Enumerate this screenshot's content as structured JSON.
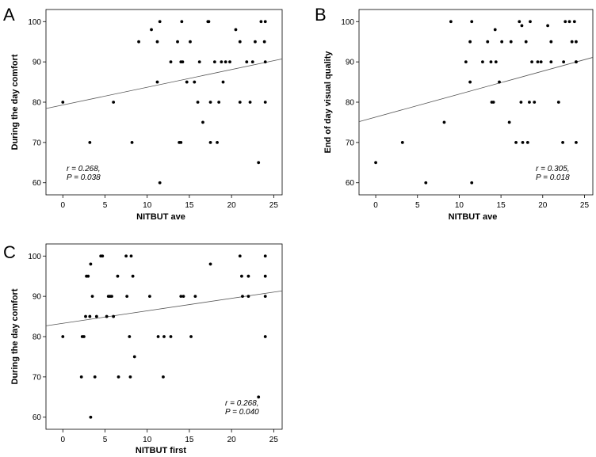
{
  "chart_data": [
    {
      "panel_label": "A",
      "type": "scatter",
      "xlabel": "NITBUT ave",
      "ylabel": "During the day comfort",
      "xlim": [
        -2,
        26
      ],
      "ylim": [
        57,
        103
      ],
      "xticks": [
        0,
        5,
        10,
        15,
        20,
        25
      ],
      "yticks": [
        60,
        70,
        80,
        90,
        100
      ],
      "stats_r": "r = 0.268,",
      "stats_p": "P = 0.038",
      "stats_position": "bottom-left",
      "fit_line": {
        "intercept": 79.3,
        "slope": 0.44
      },
      "points": [
        [
          0,
          80
        ],
        [
          3.2,
          70
        ],
        [
          6,
          80
        ],
        [
          8.2,
          70
        ],
        [
          9,
          95
        ],
        [
          10.5,
          98
        ],
        [
          11.2,
          95
        ],
        [
          11.2,
          85
        ],
        [
          11.5,
          100
        ],
        [
          11.5,
          60
        ],
        [
          12.8,
          90
        ],
        [
          13.6,
          95
        ],
        [
          13.8,
          70
        ],
        [
          14,
          70
        ],
        [
          14,
          90
        ],
        [
          14.1,
          100
        ],
        [
          14.2,
          90
        ],
        [
          14.7,
          85
        ],
        [
          15.1,
          95
        ],
        [
          15.6,
          85
        ],
        [
          16,
          80
        ],
        [
          16.2,
          90
        ],
        [
          16.6,
          75
        ],
        [
          17.2,
          100
        ],
        [
          17.3,
          100
        ],
        [
          17.5,
          80
        ],
        [
          17.5,
          70
        ],
        [
          18,
          90
        ],
        [
          18.3,
          70
        ],
        [
          18.5,
          80
        ],
        [
          18.8,
          90
        ],
        [
          19,
          85
        ],
        [
          19.3,
          90
        ],
        [
          19.8,
          90
        ],
        [
          20.5,
          98
        ],
        [
          21,
          80
        ],
        [
          21,
          95
        ],
        [
          21.8,
          90
        ],
        [
          22.2,
          80
        ],
        [
          22.5,
          90
        ],
        [
          22.8,
          95
        ],
        [
          23.2,
          65
        ],
        [
          23.5,
          100
        ],
        [
          23.9,
          95
        ],
        [
          24,
          90
        ],
        [
          24,
          100
        ],
        [
          24,
          80
        ]
      ]
    },
    {
      "panel_label": "B",
      "type": "scatter",
      "xlabel": "NITBUT ave",
      "ylabel": "End of day visual quality",
      "xlim": [
        -2,
        26
      ],
      "ylim": [
        57,
        103
      ],
      "xticks": [
        0,
        5,
        10,
        15,
        20,
        25
      ],
      "yticks": [
        60,
        70,
        80,
        90,
        100
      ],
      "stats_r": "r = 0.305,",
      "stats_p": "P = 0.018",
      "stats_position": "bottom-right",
      "fit_line": {
        "intercept": 76.3,
        "slope": 0.57
      },
      "points": [
        [
          0,
          65
        ],
        [
          3.2,
          70
        ],
        [
          6,
          60
        ],
        [
          8.2,
          75
        ],
        [
          9,
          100
        ],
        [
          10.8,
          90
        ],
        [
          11.3,
          95
        ],
        [
          11.3,
          85
        ],
        [
          11.5,
          100
        ],
        [
          11.5,
          60
        ],
        [
          12.8,
          90
        ],
        [
          13.4,
          95
        ],
        [
          13.8,
          90
        ],
        [
          13.9,
          80
        ],
        [
          14.1,
          80
        ],
        [
          14.3,
          98
        ],
        [
          14.4,
          90
        ],
        [
          14.8,
          85
        ],
        [
          15.1,
          95
        ],
        [
          16,
          75
        ],
        [
          16.2,
          95
        ],
        [
          16.8,
          70
        ],
        [
          17.2,
          100
        ],
        [
          17.4,
          80
        ],
        [
          17.5,
          99
        ],
        [
          17.6,
          70
        ],
        [
          18,
          95
        ],
        [
          18.2,
          70
        ],
        [
          18.4,
          80
        ],
        [
          18.5,
          100
        ],
        [
          18.7,
          90
        ],
        [
          19,
          80
        ],
        [
          19.4,
          90
        ],
        [
          19.8,
          90
        ],
        [
          20.6,
          99
        ],
        [
          21,
          90
        ],
        [
          21,
          95
        ],
        [
          21.9,
          80
        ],
        [
          22.4,
          70
        ],
        [
          22.5,
          90
        ],
        [
          22.7,
          100
        ],
        [
          23.2,
          100
        ],
        [
          23.5,
          95
        ],
        [
          23.8,
          100
        ],
        [
          24,
          90
        ],
        [
          24,
          95
        ],
        [
          24,
          70
        ],
        [
          24,
          90
        ]
      ]
    },
    {
      "panel_label": "C",
      "type": "scatter",
      "xlabel": "NITBUT first",
      "ylabel": "During the day comfort",
      "xlim": [
        -2,
        26
      ],
      "ylim": [
        57,
        103
      ],
      "xticks": [
        0,
        5,
        10,
        15,
        20,
        25
      ],
      "yticks": [
        60,
        70,
        80,
        90,
        100
      ],
      "stats_r": "r = 0.268,",
      "stats_p": "P = 0.040",
      "stats_position": "bottom-right",
      "fit_line": {
        "intercept": 83.3,
        "slope": 0.31
      },
      "points": [
        [
          0,
          80
        ],
        [
          2.2,
          70
        ],
        [
          2.3,
          80
        ],
        [
          2.5,
          80
        ],
        [
          2.7,
          85
        ],
        [
          2.8,
          95
        ],
        [
          3,
          95
        ],
        [
          3.2,
          85
        ],
        [
          3.3,
          98
        ],
        [
          3.3,
          60
        ],
        [
          3.5,
          90
        ],
        [
          3.8,
          70
        ],
        [
          4,
          85
        ],
        [
          4.5,
          100
        ],
        [
          4.7,
          100
        ],
        [
          5.2,
          85
        ],
        [
          5.4,
          90
        ],
        [
          5.6,
          90
        ],
        [
          5.8,
          90
        ],
        [
          6,
          85
        ],
        [
          6.5,
          95
        ],
        [
          6.6,
          70
        ],
        [
          7.5,
          100
        ],
        [
          7.6,
          90
        ],
        [
          7.9,
          80
        ],
        [
          8,
          70
        ],
        [
          8.1,
          100
        ],
        [
          8.3,
          95
        ],
        [
          8.5,
          75
        ],
        [
          10.3,
          90
        ],
        [
          11.3,
          80
        ],
        [
          11.9,
          70
        ],
        [
          12,
          80
        ],
        [
          12.8,
          80
        ],
        [
          14,
          90
        ],
        [
          14.3,
          90
        ],
        [
          15.2,
          80
        ],
        [
          15.7,
          90
        ],
        [
          17.5,
          98
        ],
        [
          21,
          100
        ],
        [
          21.2,
          95
        ],
        [
          21.3,
          90
        ],
        [
          22,
          95
        ],
        [
          22,
          90
        ],
        [
          23.2,
          65
        ],
        [
          24,
          100
        ],
        [
          24,
          95
        ],
        [
          24,
          90
        ],
        [
          24,
          80
        ]
      ]
    }
  ]
}
